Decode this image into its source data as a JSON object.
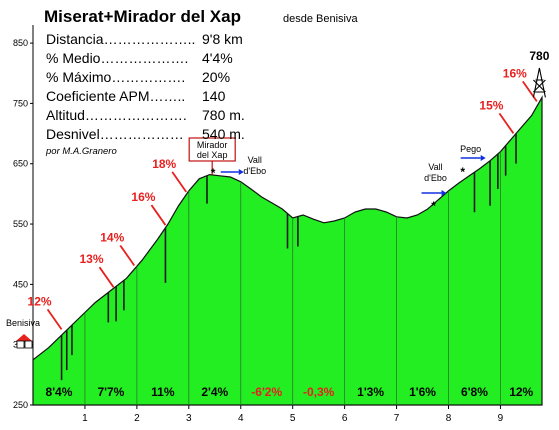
{
  "header": {
    "title": "Miserat+Mirador del Xap",
    "subtitle": "desde Benisiva",
    "stats": [
      {
        "label": "Distancia………………..",
        "value": "9'8 km"
      },
      {
        "label": "% Medio……………….",
        "value": "4'4%"
      },
      {
        "label": "% Máximo…………….",
        "value": "20%"
      },
      {
        "label": "Coeficiente APM……..",
        "value": "140"
      },
      {
        "label": "Altitud………………….",
        "value": "780 m."
      },
      {
        "label": "Desnivel………………",
        "value": "540 m."
      }
    ],
    "author": "por M.A.Granero"
  },
  "chart_data": {
    "type": "area",
    "title": "Miserat+Mirador del Xap",
    "xlim": [
      0,
      9.8
    ],
    "ylim": [
      250,
      880
    ],
    "yticks": [
      250,
      350,
      450,
      550,
      650,
      750,
      850
    ],
    "xticks": [
      1,
      2,
      3,
      4,
      5,
      6,
      7,
      8,
      9
    ],
    "fill_color": "#22ee22",
    "profile": {
      "x": [
        0,
        0.3,
        0.6,
        0.9,
        1.2,
        1.5,
        1.8,
        2.1,
        2.4,
        2.6,
        2.8,
        3.0,
        3.2,
        3.4,
        3.6,
        3.8,
        4.0,
        4.2,
        4.4,
        4.6,
        4.8,
        5.0,
        5.2,
        5.4,
        5.6,
        5.8,
        6.0,
        6.2,
        6.4,
        6.6,
        6.8,
        7.0,
        7.2,
        7.4,
        7.6,
        7.8,
        8.0,
        8.2,
        8.4,
        8.6,
        8.8,
        9.0,
        9.2,
        9.4,
        9.6,
        9.8
      ],
      "y": [
        325,
        345,
        370,
        395,
        420,
        440,
        460,
        490,
        525,
        550,
        580,
        605,
        625,
        632,
        630,
        628,
        620,
        608,
        595,
        585,
        575,
        560,
        565,
        558,
        552,
        555,
        560,
        570,
        575,
        575,
        570,
        562,
        560,
        565,
        575,
        590,
        605,
        618,
        630,
        642,
        655,
        670,
        690,
        710,
        730,
        760
      ]
    },
    "segments": [
      {
        "from": 0,
        "to": 1,
        "label": "8'4%",
        "color": "#000000"
      },
      {
        "from": 1,
        "to": 2,
        "label": "7'7%",
        "color": "#000000"
      },
      {
        "from": 2,
        "to": 3,
        "label": "11%",
        "color": "#000000"
      },
      {
        "from": 3,
        "to": 4,
        "label": "2'4%",
        "color": "#000000"
      },
      {
        "from": 4,
        "to": 5,
        "label": "-6'2%",
        "color": "#e8201e"
      },
      {
        "from": 5,
        "to": 6,
        "label": "-0,3%",
        "color": "#e8201e"
      },
      {
        "from": 6,
        "to": 7,
        "label": "1'3%",
        "color": "#000000"
      },
      {
        "from": 7,
        "to": 8,
        "label": "1'6%",
        "color": "#000000"
      },
      {
        "from": 8,
        "to": 9,
        "label": "6'8%",
        "color": "#000000"
      },
      {
        "from": 9,
        "to": 9.8,
        "label": "12%",
        "color": "#000000"
      }
    ],
    "max_gradients": [
      {
        "x": 0.55,
        "y": 372,
        "label": "12%"
      },
      {
        "x": 1.55,
        "y": 442,
        "label": "13%"
      },
      {
        "x": 1.95,
        "y": 478,
        "label": "14%"
      },
      {
        "x": 2.55,
        "y": 545,
        "label": "16%"
      },
      {
        "x": 2.95,
        "y": 600,
        "label": "18%"
      },
      {
        "x": 9.25,
        "y": 697,
        "label": "15%"
      },
      {
        "x": 9.7,
        "y": 750,
        "label": "16%"
      }
    ],
    "annotations": {
      "start_place": "Benisiva",
      "mirador": [
        "Mirador",
        "del Xap"
      ],
      "vall1": [
        "Vall",
        "d'Ebo"
      ],
      "vall2": [
        "Vall",
        "d'Ebo"
      ],
      "pego": "Pego",
      "peak": "780"
    }
  }
}
